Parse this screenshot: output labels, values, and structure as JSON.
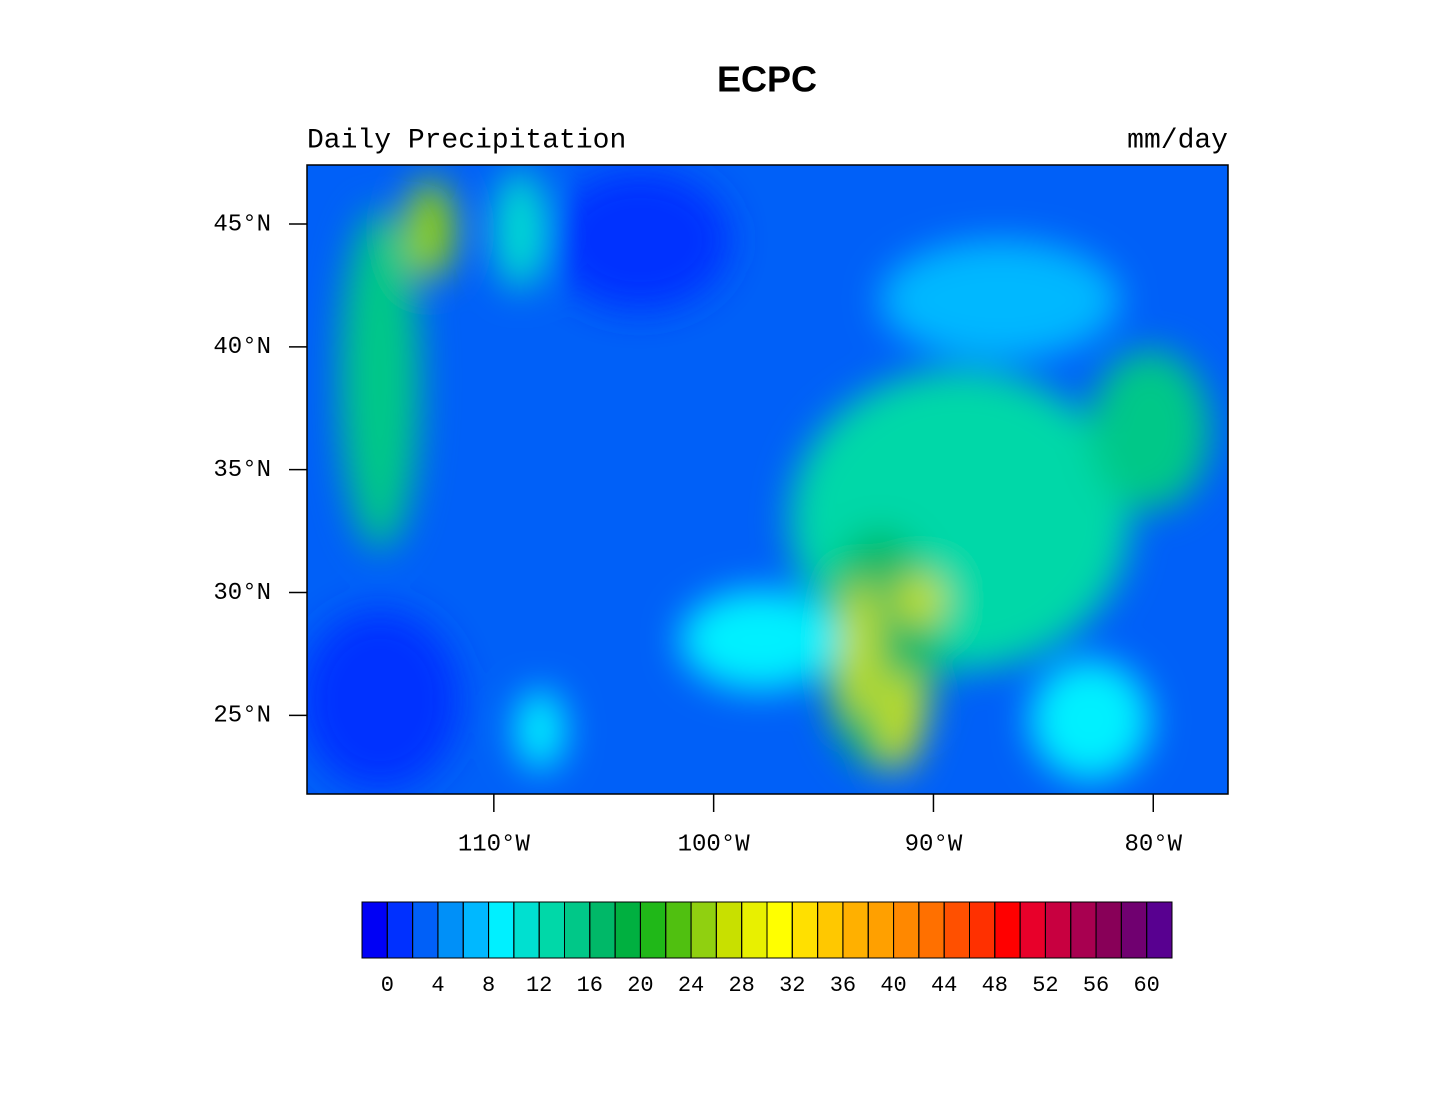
{
  "chart_data": {
    "type": "contour-map",
    "title": "ECPC",
    "left_subtitle": "Daily Precipitation",
    "right_subtitle": "mm/day",
    "xlim": [
      -118.5,
      -76.6
    ],
    "ylim": [
      21.8,
      47.4
    ],
    "xticks": [
      {
        "value": -110,
        "label": "110°W"
      },
      {
        "value": -100,
        "label": "100°W"
      },
      {
        "value": -90,
        "label": "90°W"
      },
      {
        "value": -80,
        "label": "80°W"
      }
    ],
    "yticks": [
      {
        "value": 25,
        "label": "25°N"
      },
      {
        "value": 30,
        "label": "30°N"
      },
      {
        "value": 35,
        "label": "35°N"
      },
      {
        "value": 40,
        "label": "40°N"
      },
      {
        "value": 45,
        "label": "45°N"
      }
    ],
    "colorbar": {
      "levels": [
        0,
        2,
        4,
        6,
        8,
        10,
        12,
        14,
        16,
        18,
        20,
        22,
        24,
        26,
        28,
        30,
        32,
        34,
        36,
        38,
        40,
        42,
        44,
        46,
        48,
        50,
        52,
        54,
        56,
        58,
        60
      ],
      "ticks": [
        0,
        4,
        8,
        12,
        16,
        20,
        24,
        28,
        32,
        36,
        40,
        44,
        48,
        52,
        56,
        60
      ],
      "colors": [
        "#0000f5",
        "#0030ff",
        "#0060f8",
        "#0090f8",
        "#00b8ff",
        "#00f0ff",
        "#00e0d0",
        "#00d8a8",
        "#00c888",
        "#00b868",
        "#00b040",
        "#20b818",
        "#50c010",
        "#90d010",
        "#c8e000",
        "#e8f000",
        "#ffff00",
        "#ffe000",
        "#ffc800",
        "#ffb000",
        "#ffa000",
        "#ff8800",
        "#ff7000",
        "#ff5000",
        "#ff3000",
        "#ff0000",
        "#e8002a",
        "#c80040",
        "#a80050",
        "#880058",
        "#700070",
        "#580090"
      ]
    }
  }
}
